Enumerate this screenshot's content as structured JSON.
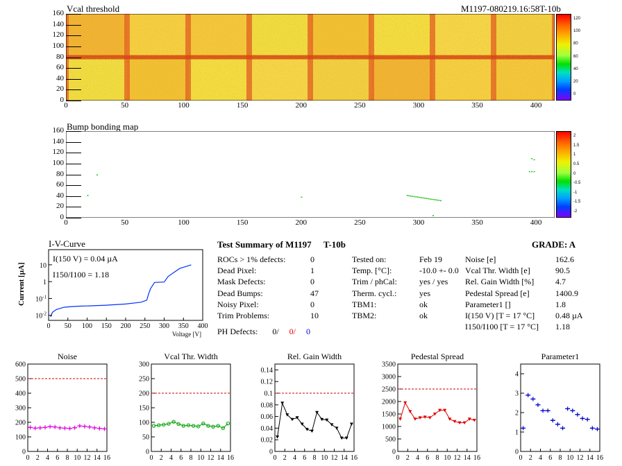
{
  "top_title": "Vcal threshold",
  "top_id": "M1197-080219.16:58T-10b",
  "bump_title": "Bump bonding map",
  "heat_axis": {
    "x_ticks": [
      "0",
      "50",
      "100",
      "150",
      "200",
      "250",
      "300",
      "350",
      "400"
    ],
    "y_ticks": [
      "0",
      "20",
      "40",
      "60",
      "80",
      "100",
      "120",
      "140",
      "160"
    ]
  },
  "colorbar_top": [
    "120",
    "100",
    "80",
    "60",
    "40",
    "20",
    "0"
  ],
  "colorbar_bump": [
    "2",
    "1.5",
    "1",
    "0.5",
    "0",
    "-0.5",
    "-1",
    "-1.5",
    "-2"
  ],
  "iv": {
    "title": "I-V-Curve",
    "note1": "I(150 V) = 0.04 µA",
    "note2": "I150/I100 =  1.18",
    "ylabel": "Current [µA]",
    "xlabel": "Voltage [V]",
    "x_ticks": [
      "0",
      "50",
      "100",
      "150",
      "200",
      "250",
      "300",
      "350",
      "400"
    ],
    "y_ticks": [
      "10",
      "1",
      "10-1",
      "10-2"
    ]
  },
  "summary": {
    "title": "Test Summary of M1197",
    "tag": "T-10b",
    "grade": "GRADE:  A",
    "rows": [
      {
        "label": "ROCs > 1% defects:",
        "value": "0"
      },
      {
        "label": "Dead Pixel:",
        "value": "1"
      },
      {
        "label": "Mask Defects:",
        "value": "0"
      },
      {
        "label": "Dead Bumps:",
        "value": "47"
      },
      {
        "label": "Noisy Pixel:",
        "value": "0"
      },
      {
        "label": "Trim Problems:",
        "value": "10"
      }
    ],
    "ph_label": "PH Defects:",
    "ph_values": [
      "0/",
      "0/",
      "0"
    ],
    "conditions": [
      {
        "label": "Tested on:",
        "value": "Feb 19"
      },
      {
        "label": "Temp. [°C]:",
        "value": "-10.0 +- 0.0"
      },
      {
        "label": "Trim / phCal:",
        "value": "yes / yes"
      },
      {
        "label": "Therm. cycl.:",
        "value": "yes"
      },
      {
        "label": "TBM1:",
        "value": "ok"
      },
      {
        "label": "TBM2:",
        "value": "ok"
      }
    ],
    "results": [
      {
        "label": "Noise [e]",
        "value": "162.6"
      },
      {
        "label": "Vcal Thr. Width [e]",
        "value": "90.5"
      },
      {
        "label": "Rel. Gain Width [%]",
        "value": "4.7"
      },
      {
        "label": "Pedestal Spread [e]",
        "value": "1400.9"
      },
      {
        "label": "Parameter1 []",
        "value": "1.8"
      },
      {
        "label": "I(150 V) [T = 17 °C]",
        "value": "0.48 µA"
      },
      {
        "label": "I150/I100  [T = 17 °C]",
        "value": "1.18"
      }
    ]
  },
  "colors": {
    "noise": "#e000e0",
    "vcal": "#00a000",
    "gain": "#000000",
    "ped": "#e00000",
    "par": "#0000cc",
    "cut": "#cc0000"
  },
  "chart_data": [
    {
      "type": "heatmap",
      "title": "Vcal threshold",
      "xlim": [
        0,
        416
      ],
      "ylim": [
        0,
        160
      ],
      "zlim": [
        0,
        130
      ]
    },
    {
      "type": "heatmap",
      "title": "Bump bonding map",
      "xlim": [
        0,
        416
      ],
      "ylim": [
        0,
        160
      ],
      "zlim": [
        -2,
        2
      ]
    },
    {
      "type": "line",
      "title": "I-V-Curve",
      "xlabel": "Voltage [V]",
      "ylabel": "Current [µA]",
      "yscale": "log",
      "xlim": [
        0,
        400
      ],
      "x": [
        5,
        10,
        20,
        40,
        60,
        80,
        100,
        150,
        200,
        240,
        255,
        260,
        265,
        275,
        300,
        310,
        340,
        370
      ],
      "y": [
        0.008,
        0.015,
        0.022,
        0.03,
        0.033,
        0.035,
        0.036,
        0.04,
        0.047,
        0.06,
        0.08,
        0.2,
        0.4,
        0.9,
        0.95,
        2.0,
        6.0,
        10.0
      ]
    },
    {
      "type": "scatter",
      "title": "Noise",
      "xlim": [
        0,
        16
      ],
      "ylim": [
        0,
        600
      ],
      "cut": 500,
      "x": [
        0.5,
        1.5,
        2.5,
        3.5,
        4.5,
        5.5,
        6.5,
        7.5,
        8.5,
        9.5,
        10.5,
        11.5,
        12.5,
        13.5,
        14.5,
        15.5
      ],
      "y": [
        165,
        160,
        162,
        165,
        170,
        168,
        162,
        160,
        158,
        163,
        175,
        172,
        168,
        162,
        158,
        155
      ]
    },
    {
      "type": "line",
      "title": "Vcal Thr. Width",
      "xlim": [
        0,
        16
      ],
      "ylim": [
        0,
        300
      ],
      "cut": 200,
      "x": [
        0.5,
        1.5,
        2.5,
        3.5,
        4.5,
        5.5,
        6.5,
        7.5,
        8.5,
        9.5,
        10.5,
        11.5,
        12.5,
        13.5,
        14.5,
        15.5
      ],
      "y": [
        88,
        90,
        92,
        95,
        102,
        94,
        88,
        90,
        88,
        86,
        96,
        88,
        85,
        88,
        80,
        96
      ]
    },
    {
      "type": "line",
      "title": "Rel. Gain Width",
      "xlim": [
        0,
        16
      ],
      "ylim": [
        0,
        0.15
      ],
      "cut": 0.1,
      "x": [
        0.5,
        1.5,
        2.5,
        3.5,
        4.5,
        5.5,
        6.5,
        7.5,
        8.5,
        9.5,
        10.5,
        11.5,
        12.5,
        13.5,
        14.5,
        15.5
      ],
      "y": [
        0.025,
        0.083,
        0.063,
        0.055,
        0.058,
        0.047,
        0.038,
        0.035,
        0.067,
        0.055,
        0.054,
        0.046,
        0.04,
        0.023,
        0.023,
        0.047
      ]
    },
    {
      "type": "line",
      "title": "Pedestal Spread",
      "xlim": [
        0,
        16
      ],
      "ylim": [
        0,
        3500
      ],
      "cut": 2500,
      "x": [
        0.5,
        1.5,
        2.5,
        3.5,
        4.5,
        5.5,
        6.5,
        7.5,
        8.5,
        9.5,
        10.5,
        11.5,
        12.5,
        13.5,
        14.5,
        15.5
      ],
      "y": [
        1300,
        1950,
        1600,
        1300,
        1350,
        1380,
        1350,
        1500,
        1650,
        1650,
        1300,
        1200,
        1150,
        1150,
        1300,
        1250
      ]
    },
    {
      "type": "scatter",
      "title": "Parameter1",
      "xlim": [
        0,
        16
      ],
      "ylim": [
        0,
        4.5
      ],
      "x": [
        0.5,
        1.5,
        2.5,
        3.5,
        4.5,
        5.5,
        6.5,
        7.5,
        8.5,
        9.5,
        10.5,
        11.5,
        12.5,
        13.5,
        14.5,
        15.5
      ],
      "y": [
        1.2,
        2.9,
        2.7,
        2.4,
        2.1,
        2.1,
        1.6,
        1.4,
        1.2,
        2.2,
        2.1,
        1.9,
        1.7,
        1.65,
        1.2,
        1.15
      ]
    }
  ]
}
